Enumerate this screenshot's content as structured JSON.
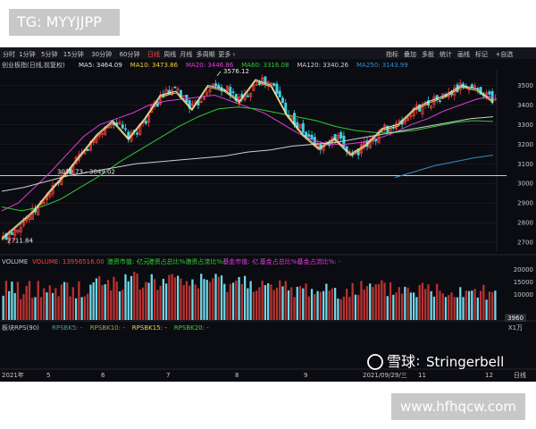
{
  "corner_tag": "TG: MYYJJPP",
  "watermark_site": "www.hfhqcw.com",
  "toolbar": {
    "periods": [
      "分时",
      "1分钟",
      "5分钟",
      "15分钟",
      "30分钟",
      "60分钟",
      "日线",
      "周线",
      "月线",
      "多周期",
      "更多 ›"
    ],
    "active_period": "日线",
    "tools": [
      "指标",
      "叠加",
      "多股",
      "统计",
      "画线",
      "标记",
      "+自选"
    ]
  },
  "chart_data": [
    {
      "type": "candlestick",
      "title": "创业板指(日线,前复权)",
      "ma_legend": [
        {
          "label": "MA5: 3464.09",
          "color": "#e6e6e6"
        },
        {
          "label": "MA10: 3473.86",
          "color": "#f0d23c"
        },
        {
          "label": "MA20: 3446.86",
          "color": "#e03cdc"
        },
        {
          "label": "MA60: 3316.08",
          "color": "#32c832"
        },
        {
          "label": "MA120: 3340.26",
          "color": "#cfcfcf"
        },
        {
          "label": "MA250: 3143.99",
          "color": "#2e8fd0"
        }
      ],
      "y_ticks": [
        2700,
        2800,
        2900,
        3000,
        3100,
        3200,
        3300,
        3400,
        3500
      ],
      "ylim": [
        2650,
        3580
      ],
      "annotations": [
        {
          "text": "3576.12",
          "price": 3576.12
        },
        {
          "text": "3030.73 - 3049.02",
          "price": 3040
        },
        {
          "text": "2711.84",
          "price": 2711.84
        }
      ],
      "reference_line": 3040,
      "x_labels": [
        "2021年",
        "5",
        "6",
        "7",
        "8",
        "9",
        "2021/09/29/三",
        "11",
        "12",
        "日线"
      ],
      "series_overview": {
        "close_path": [
          2720,
          2790,
          2860,
          2960,
          3050,
          3150,
          3250,
          3320,
          3230,
          3330,
          3450,
          3470,
          3380,
          3500,
          3480,
          3420,
          3530,
          3500,
          3350,
          3250,
          3180,
          3230,
          3150,
          3200,
          3280,
          3300,
          3380,
          3420,
          3450,
          3500,
          3480,
          3420
        ],
        "ma20": [
          2860,
          2900,
          2980,
          3060,
          3150,
          3240,
          3300,
          3330,
          3360,
          3400,
          3420,
          3430,
          3440,
          3450,
          3420,
          3390,
          3360,
          3310,
          3260,
          3220,
          3200,
          3200,
          3210,
          3230,
          3260,
          3300,
          3330,
          3370,
          3400,
          3430,
          3445
        ],
        "ma60": [
          2880,
          2860,
          2880,
          2920,
          2980,
          3040,
          3110,
          3170,
          3230,
          3290,
          3340,
          3380,
          3390,
          3380,
          3360,
          3340,
          3320,
          3290,
          3270,
          3260,
          3260,
          3270,
          3290,
          3310,
          3320,
          3316
        ],
        "ma120": [
          2960,
          2980,
          3010,
          3040,
          3060,
          3080,
          3100,
          3110,
          3120,
          3130,
          3140,
          3160,
          3170,
          3190,
          3200,
          3210,
          3230,
          3250,
          3270,
          3290,
          3310,
          3330,
          3340
        ],
        "ma250": [
          3030,
          3060,
          3090,
          3110,
          3130,
          3144
        ]
      }
    },
    {
      "type": "bar",
      "title": "VOLUME",
      "legend": [
        {
          "label": "VOLUME: 13956516.00",
          "color": "#ff4040"
        },
        {
          "label": "港资市值: -",
          "color": "#36d236"
        },
        {
          "label": "亿元",
          "color": "#36d236"
        },
        {
          "label": "港资占总比%: -",
          "color": "#36d236"
        },
        {
          "label": "港资占流比%: -",
          "color": "#36d236"
        },
        {
          "label": "基金市值: -",
          "color": "#e03cdc"
        },
        {
          "label": "亿",
          "color": "#e03cdc"
        },
        {
          "label": "基金占总比%: -",
          "color": "#e03cdc"
        },
        {
          "label": "基金占流比%: -",
          "color": "#e03cdc"
        }
      ],
      "y_ticks": [
        10000,
        15000,
        20000
      ],
      "ylim": [
        0,
        21500
      ],
      "current_value": "3960",
      "unit": "X1万"
    },
    {
      "type": "line",
      "title": "板块RPS(90)",
      "legend": [
        {
          "label": "RPSBK5: -",
          "color": "#3ca0a0"
        },
        {
          "label": "RPSBK10: -",
          "color": "#a0a050"
        },
        {
          "label": "RPSBK15: -",
          "color": "#f0d23c"
        },
        {
          "label": "RPSBK20: -",
          "color": "#36d236"
        }
      ]
    }
  ],
  "watermark_brand": {
    "cn": "雪球",
    "sep": "∶",
    "en": "Stringerbell"
  }
}
